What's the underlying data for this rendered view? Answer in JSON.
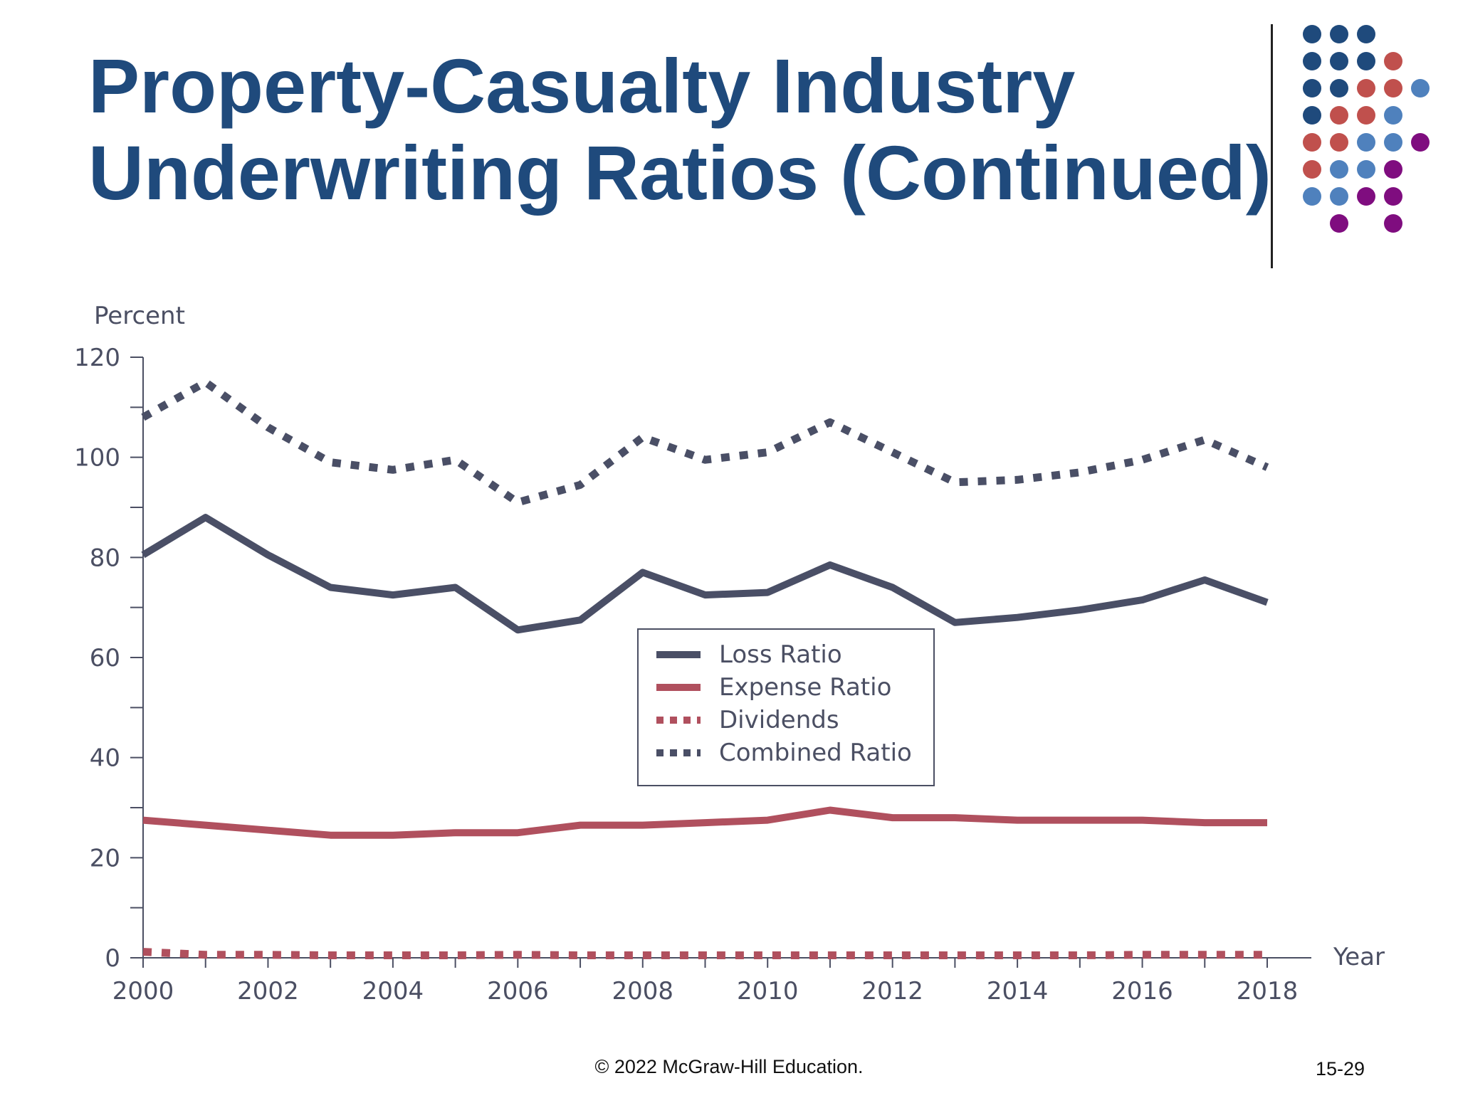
{
  "slide": {
    "title_line1": "Property-Casualty Industry",
    "title_line2": "Underwriting Ratios (Continued)",
    "footer": "© 2022 McGraw-Hill Education.",
    "page_number": "15-29"
  },
  "colors": {
    "title": "#1f4a7c",
    "dark_navy": "#1f4a7c",
    "coral": "#c0504d",
    "light_blue": "#4f81bd",
    "purple": "#7f0d7f",
    "loss_series": "#4a4f66",
    "expense_series": "#b0505e"
  },
  "chart_data": {
    "type": "line",
    "ylabel": "Percent",
    "xlabel": "Year",
    "ylim": [
      0,
      120
    ],
    "xlim": [
      2000,
      2018
    ],
    "yticks": [
      0,
      20,
      40,
      60,
      80,
      100,
      120
    ],
    "xticks": [
      2000,
      2002,
      2004,
      2006,
      2008,
      2010,
      2012,
      2014,
      2016,
      2018
    ],
    "grid": false,
    "legend_position": "center",
    "x": [
      2000,
      2001,
      2002,
      2003,
      2004,
      2005,
      2006,
      2007,
      2008,
      2009,
      2010,
      2011,
      2012,
      2013,
      2014,
      2015,
      2016,
      2017,
      2018
    ],
    "series": [
      {
        "name": "Loss Ratio",
        "style": "solid",
        "color": "#4a4f66",
        "values": [
          80.5,
          88,
          80.5,
          74,
          72.5,
          74,
          65.5,
          67.5,
          77,
          72.5,
          73,
          78.5,
          74,
          67,
          68,
          69.5,
          71.5,
          75.5,
          71
        ]
      },
      {
        "name": "Expense Ratio",
        "style": "solid",
        "color": "#b0505e",
        "values": [
          27.5,
          26.5,
          25.5,
          24.5,
          24.5,
          25,
          25,
          26.5,
          26.5,
          27,
          27.5,
          29.5,
          28,
          28,
          27.5,
          27.5,
          27.5,
          27,
          27
        ]
      },
      {
        "name": "Dividends",
        "style": "dotted",
        "color": "#b0505e",
        "values": [
          1.2,
          0.6,
          0.6,
          0.5,
          0.5,
          0.5,
          0.6,
          0.5,
          0.5,
          0.5,
          0.5,
          0.5,
          0.5,
          0.5,
          0.5,
          0.5,
          0.6,
          0.6,
          0.6
        ]
      },
      {
        "name": "Combined Ratio",
        "style": "dotted",
        "color": "#4a4f66",
        "values": [
          108,
          115,
          106,
          99,
          97.5,
          99.5,
          91,
          94.5,
          104,
          99.5,
          101,
          107,
          101,
          95,
          95.5,
          97,
          99.5,
          103.5,
          98
        ]
      }
    ]
  }
}
